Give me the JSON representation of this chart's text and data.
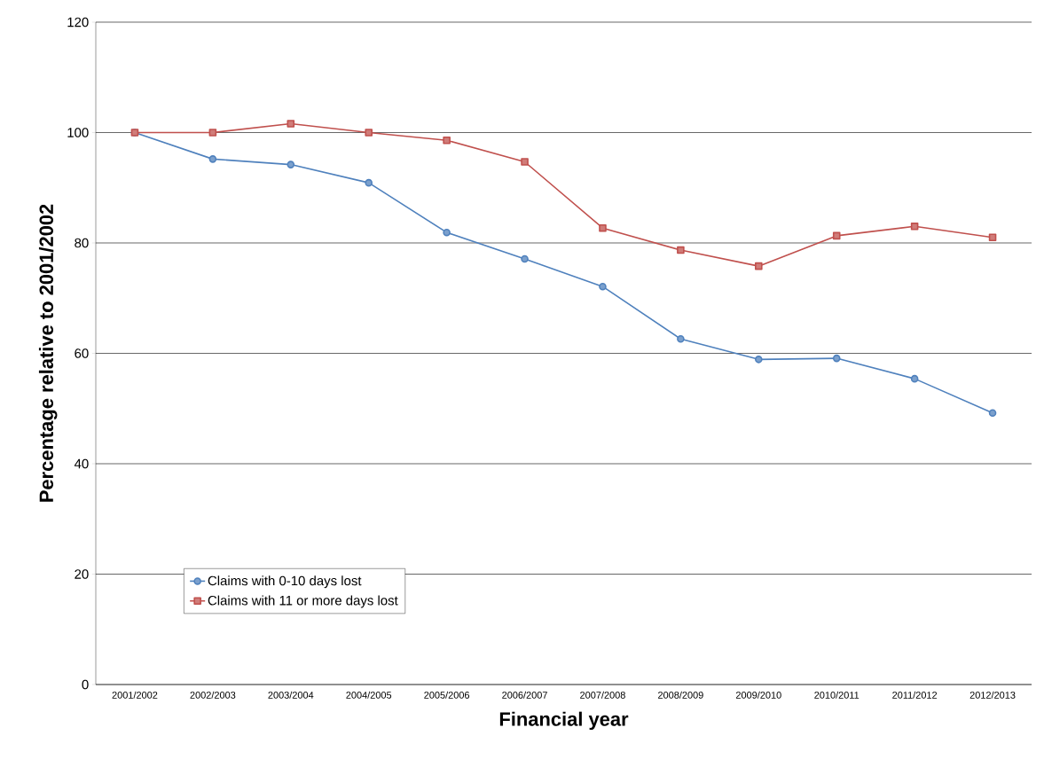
{
  "chart_data": {
    "type": "line",
    "xlabel": "Financial year",
    "ylabel": "Percentage relative to 2001/2002",
    "categories": [
      "2001/2002",
      "2002/2003",
      "2003/2004",
      "2004/2005",
      "2005/2006",
      "2006/2007",
      "2007/2008",
      "2008/2009",
      "2009/2010",
      "2010/2011",
      "2011/2012",
      "2012/2013"
    ],
    "series": [
      {
        "name": "Claims with 0-10 days lost",
        "color": "#4f81bd",
        "marker": "circle",
        "values": [
          100,
          95.2,
          94.2,
          90.9,
          81.9,
          77.1,
          72.1,
          62.6,
          58.9,
          59.1,
          55.4,
          49.2
        ]
      },
      {
        "name": "Claims with 11 or more days lost",
        "color": "#c0504d",
        "marker": "square",
        "values": [
          100,
          100,
          101.6,
          100,
          98.6,
          94.7,
          82.7,
          78.7,
          75.8,
          81.3,
          83.0,
          81.0
        ]
      }
    ],
    "ylim": [
      0,
      120
    ],
    "yticks": [
      0,
      20,
      40,
      60,
      80,
      100,
      120
    ],
    "grid": "y",
    "legend": "bottom left",
    "line_style": "solid"
  }
}
